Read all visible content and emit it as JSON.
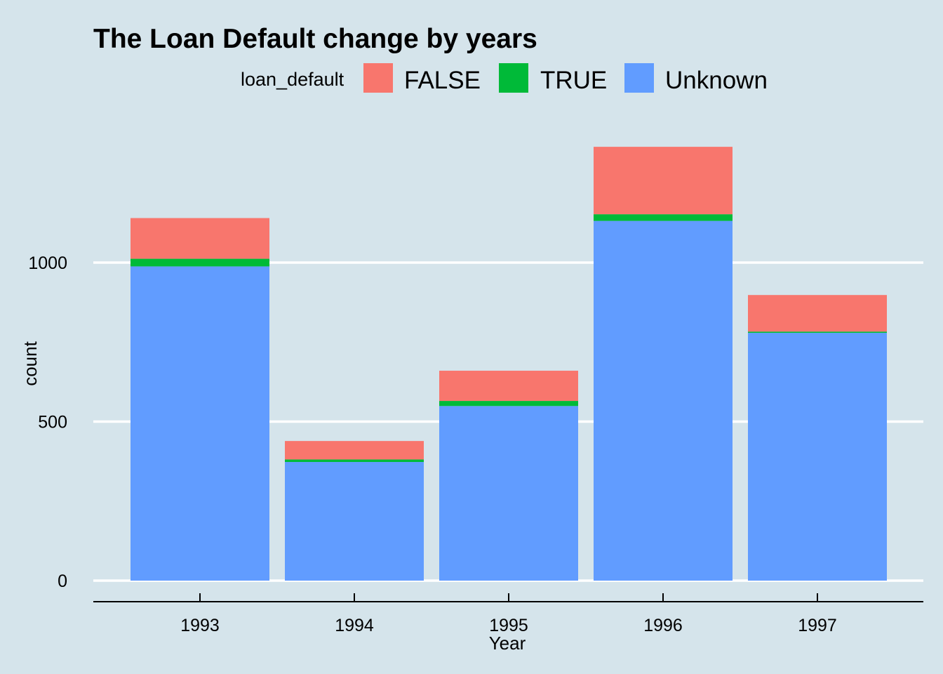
{
  "chart_data": {
    "type": "bar",
    "stacked": true,
    "title": "The Loan Default change by years",
    "xlabel": "Year",
    "ylabel": "count",
    "categories": [
      "1993",
      "1994",
      "1995",
      "1996",
      "1997"
    ],
    "series": [
      {
        "name": "Unknown",
        "color": "#619cff",
        "values": [
          988,
          373,
          549,
          1131,
          779
        ]
      },
      {
        "name": "TRUE",
        "color": "#00ba38",
        "values": [
          24,
          8,
          16,
          21,
          4
        ]
      },
      {
        "name": "FALSE",
        "color": "#f8766d",
        "values": [
          128,
          58,
          95,
          212,
          115
        ]
      }
    ],
    "ylim": [
      0,
      1380
    ],
    "yticks": [
      0,
      500,
      1000
    ],
    "grid": "horizontal-major",
    "legend": {
      "title": "loan_default",
      "position": "top",
      "order": [
        "FALSE",
        "TRUE",
        "Unknown"
      ]
    },
    "background": "#d5e4eb",
    "gridline_color": "#ffffff"
  }
}
